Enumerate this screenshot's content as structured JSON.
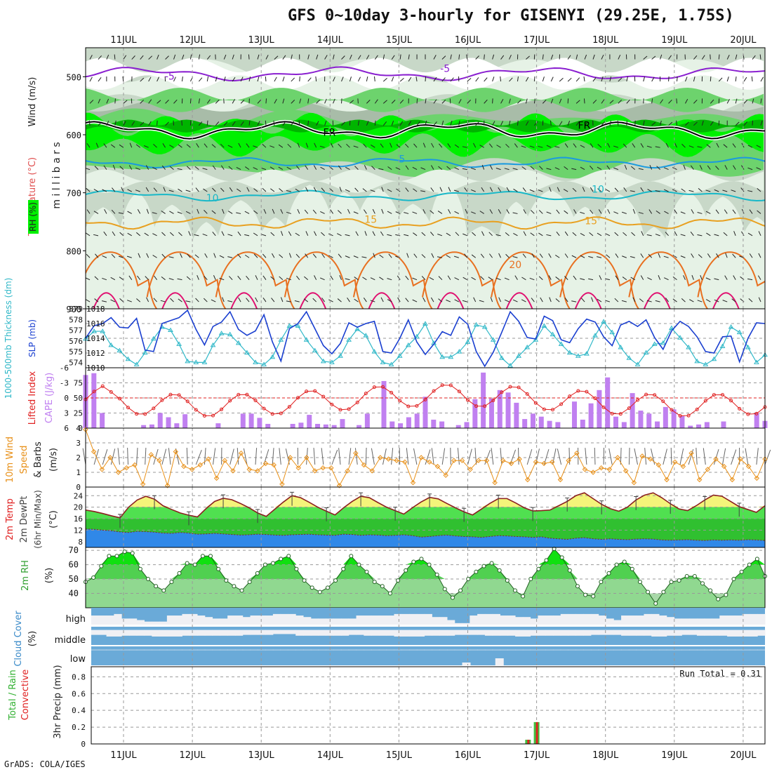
{
  "title": "GFS 0~10day 3-hourly for GISENYI (29.25E, 1.75S)",
  "footer": "GrADS: COLA/IGES",
  "dates": [
    "11JUL",
    "12JUL",
    "13JUL",
    "14JUL",
    "15JUL",
    "16JUL",
    "17JUL",
    "18JUL",
    "19JUL",
    "20JUL"
  ],
  "colors": {
    "rh_light": "#e6f2e6",
    "rh_mid": "#c8d8c8",
    "rh_dark": "#a8bca8",
    "rh_green": "#6dd36d",
    "rh_bright": "#00f000",
    "rh_deep": "#00b400",
    "temp_m5": "#8a1fd0",
    "temp_fr": "#000000",
    "temp_5": "#1a9adf",
    "temp_10": "#18b8c8",
    "temp_15": "#e8a020",
    "temp_20": "#e87020",
    "temp_25": "#e01070",
    "slp": "#1a3fd0",
    "thick": "#30b8c8",
    "cape": "#c080f0",
    "li": "#e02020",
    "wind10": "#e89018",
    "t_yellow": "#f4f47a",
    "t_green1": "#50e050",
    "t_green2": "#30c030",
    "dew_blue": "#3088e8",
    "cloud_blue": "#6aaad8",
    "cloud_white": "#f0f0f4",
    "precip_green": "#40c040",
    "precip_red": "#e02020"
  },
  "chart_data": [
    {
      "type": "heatmap",
      "panel": "upper-air",
      "ylabel": "m i l l i b a r s",
      "side_labels": [
        "RH (%)",
        "Temperature (°C)",
        "Wind (m/s)"
      ],
      "y_ticks": [
        500,
        600,
        700,
        800,
        900
      ],
      "ylim": [
        450,
        900
      ],
      "isotherm_labels": [
        {
          "text": "-5",
          "date": 11.6,
          "level": 505,
          "key": "temp_m5"
        },
        {
          "text": "-5",
          "date": 15.6,
          "level": 492,
          "key": "temp_m5"
        },
        {
          "text": "FR",
          "date": 13.9,
          "level": 602,
          "key": "temp_fr"
        },
        {
          "text": "FR",
          "date": 17.6,
          "level": 590,
          "key": "temp_fr"
        },
        {
          "text": "5",
          "date": 15.0,
          "level": 648,
          "key": "temp_5"
        },
        {
          "text": "10",
          "date": 12.2,
          "level": 715,
          "key": "temp_10"
        },
        {
          "text": "10",
          "date": 17.8,
          "level": 700,
          "key": "temp_10"
        },
        {
          "text": "15",
          "date": 14.5,
          "level": 752,
          "key": "temp_15"
        },
        {
          "text": "15",
          "date": 17.7,
          "level": 754,
          "key": "temp_15"
        },
        {
          "text": "20",
          "date": 16.6,
          "level": 830,
          "key": "temp_20"
        }
      ]
    },
    {
      "type": "line",
      "panel": "thickness-slp",
      "ylabel_left": "1000-500mb Thickness (dm)",
      "ylabel_right": "SLP (mb)",
      "left_ticks": [
        574,
        575,
        576,
        577,
        578,
        579
      ],
      "right_ticks": [
        1010,
        1012,
        1014,
        1016,
        1018
      ],
      "series": [
        {
          "key": "slp",
          "values": [
            1014.0,
            1015.7,
            1016.0,
            1016.8,
            1015.5,
            1015.4,
            1016.7,
            1012.4,
            1012.2,
            1016.0,
            1016.4,
            1016.8,
            1017.8,
            1015.2,
            1013.1,
            1015.6,
            1016.2,
            1017.6,
            1015.2,
            1014.4,
            1015.0,
            1017.2,
            1013.5,
            1010.9,
            1015.3,
            1016.0,
            1017.6,
            1015.3,
            1013.0,
            1011.9,
            1013.3,
            1016.1,
            1015.5,
            1016.0,
            1016.3,
            1012.2,
            1012.0,
            1014.0,
            1016.5,
            1013.5,
            1011.8,
            1013.2,
            1014.9,
            1014.4,
            1016.9,
            1015.9,
            1012.2,
            1010.2,
            1012.1,
            1014.8,
            1017.6,
            1016.3,
            1014.1,
            1013.9,
            1017.0,
            1016.4,
            1013.8,
            1013.4,
            1015.3,
            1016.6,
            1016.2,
            1014.2,
            1013.0,
            1015.8,
            1016.3,
            1015.6,
            1016.5,
            1014.1,
            1012.5,
            1015.0,
            1016.3,
            1015.6,
            1014.2,
            1012.2,
            1012.0,
            1014.2,
            1014.3,
            1010.8,
            1014.0,
            1016.1,
            1016.0
          ]
        },
        {
          "key": "thick",
          "values": [
            576.2,
            576.9,
            576.9,
            575.6,
            575.1,
            574.3,
            573.8,
            574.9,
            576.2,
            577.3,
            577.0,
            575.7,
            574.1,
            574.0,
            574.0,
            575.6,
            576.7,
            576.6,
            575.8,
            574.9,
            574.0,
            573.8,
            574.5,
            576.1,
            577.4,
            577.4,
            576.1,
            575.1,
            574.1,
            574.0,
            574.6,
            576.1,
            577.1,
            576.5,
            575.0,
            574.0,
            573.8,
            574.6,
            575.6,
            576.4,
            577.6,
            575.8,
            574.5,
            574.5,
            575.0,
            575.9,
            577.5,
            577.3,
            576.1,
            574.4,
            573.7,
            574.6,
            575.4,
            576.1,
            577.4,
            576.6,
            575.7,
            574.9,
            574.6,
            574.8,
            576.5,
            577.8,
            576.8,
            575.4,
            574.4,
            573.8,
            574.9,
            575.7,
            575.8,
            577.2,
            576.3,
            575.4,
            574.1,
            573.8,
            574.3,
            575.5,
            577.3,
            576.8,
            575.4,
            574.0,
            574.7
          ]
        }
      ]
    },
    {
      "type": "bar",
      "panel": "cape-li",
      "ylabel_left": "Lifted Index",
      "ylabel_right": "CAPE (J/kg)",
      "li_ticks": [
        -6,
        -3,
        0,
        3,
        6
      ],
      "cape_ticks": [
        0,
        25,
        50,
        75
      ],
      "cape_values": [
        88,
        91,
        25,
        0,
        0,
        0,
        0,
        5,
        6,
        25,
        18,
        8,
        23,
        0,
        0,
        0,
        8,
        0,
        0,
        24,
        24,
        17,
        7,
        0,
        0,
        7,
        9,
        22,
        7,
        6,
        5,
        15,
        0,
        5,
        24,
        0,
        78,
        11,
        8,
        18,
        24,
        52,
        14,
        11,
        0,
        5,
        10,
        48,
        92,
        49,
        63,
        59,
        42,
        15,
        24,
        19,
        12,
        10,
        0,
        44,
        14,
        41,
        63,
        84,
        19,
        10,
        58,
        29,
        24,
        11,
        35,
        31,
        20,
        4,
        6,
        10,
        0,
        11,
        0,
        0,
        0,
        25,
        12
      ]
    },
    {
      "type": "line",
      "panel": "wind10m",
      "ylabel": "10m Wind Speed & Barbs (m/s)",
      "y_ticks": [
        0,
        1,
        2,
        3,
        4
      ],
      "ylim": [
        0,
        4
      ],
      "series": [
        {
          "key": "wind10",
          "values": [
            3.9,
            2.4,
            1.2,
            2.0,
            1.0,
            1.3,
            1.5,
            0.2,
            2.2,
            1.8,
            0.1,
            2.4,
            1.4,
            1.2,
            1.5,
            1.9,
            0.6,
            1.8,
            1.1,
            2.3,
            1.2,
            1.1,
            1.6,
            1.5,
            0.2,
            2.0,
            1.3,
            2.0,
            1.1,
            1.3,
            1.3,
            0.1,
            1.1,
            2.3,
            1.5,
            1.1,
            2.0,
            1.9,
            1.8,
            1.7,
            0.3,
            2.0,
            1.7,
            1.4,
            0.8,
            1.8,
            1.8,
            1.2,
            1.8,
            1.8,
            0.3,
            1.8,
            1.6,
            1.9,
            0.5,
            1.7,
            1.6,
            1.7,
            0.5,
            1.8,
            2.3,
            1.2,
            1.0,
            1.3,
            1.2,
            2.0,
            1.1,
            0.3,
            2.1,
            1.9,
            1.5,
            0.5,
            1.7,
            1.4,
            2.3,
            0.5,
            1.2,
            1.9,
            1.4,
            0.5,
            1.9,
            1.4,
            0.6,
            1.9
          ]
        }
      ]
    },
    {
      "type": "area",
      "panel": "temp-dewpt",
      "ylabel": "2m Temp 2m DewPt (6hr Min/Max) (°C)",
      "y_ticks": [
        8,
        12,
        16,
        20,
        24
      ],
      "ylim": [
        6,
        27
      ],
      "series": [
        {
          "name": "temp",
          "values": [
            19.0,
            18.5,
            17.8,
            17.0,
            16.3,
            20.0,
            22.5,
            23.8,
            22.8,
            20.5,
            19.2,
            18.0,
            17.2,
            16.6,
            19.5,
            22.0,
            23.1,
            22.6,
            21.3,
            19.8,
            18.0,
            16.8,
            19.3,
            21.8,
            24.0,
            23.3,
            21.7,
            20.0,
            18.6,
            17.3,
            19.8,
            22.0,
            23.8,
            23.3,
            21.6,
            20.0,
            18.8,
            17.6,
            19.8,
            21.8,
            23.4,
            22.9,
            21.3,
            19.8,
            18.4,
            17.3,
            19.3,
            21.3,
            23.0,
            23.0,
            21.5,
            19.8,
            18.7,
            18.8,
            19.0,
            20.5,
            22.0,
            24.0,
            25.0,
            23.0,
            21.0,
            19.5,
            18.6,
            20.0,
            22.5,
            24.2,
            25.0,
            23.3,
            21.2,
            19.4,
            18.8,
            20.5,
            22.5,
            24.2,
            23.8,
            22.0,
            20.2,
            19.2,
            18.2,
            20.5
          ]
        },
        {
          "name": "dewpt",
          "values": [
            12.4,
            12.3,
            12.0,
            11.8,
            11.4,
            11.2,
            11.6,
            11.5,
            11.3,
            11.0,
            10.9,
            11.2,
            11.0,
            10.6,
            10.7,
            10.9,
            10.7,
            10.5,
            10.3,
            10.4,
            10.6,
            10.5,
            10.3,
            10.2,
            10.4,
            10.5,
            10.6,
            10.4,
            10.3,
            10.2,
            10.6,
            10.5,
            10.2,
            10.4,
            10.3,
            10.1,
            10.2,
            10.4,
            10.1,
            9.6,
            9.8,
            10.1,
            10.3,
            10.0,
            9.8,
            9.7,
            9.5,
            9.8,
            10.1,
            10.0,
            9.8,
            9.7,
            9.5,
            9.7,
            9.2,
            9.0,
            8.8,
            9.2,
            9.4,
            9.0,
            8.8,
            9.0,
            8.8,
            8.7,
            8.9,
            9.0,
            8.9,
            8.6,
            8.5,
            8.6,
            8.7,
            8.5,
            8.4,
            8.6,
            8.5,
            8.6,
            8.5,
            8.7,
            8.6,
            8.4
          ]
        }
      ]
    },
    {
      "type": "area",
      "panel": "rh2m",
      "ylabel": "2m RH (%)",
      "y_ticks": [
        40,
        50,
        60,
        70
      ],
      "ylim": [
        30,
        72
      ],
      "series": [
        {
          "name": "rh",
          "values": [
            48,
            51,
            59,
            66,
            66,
            69,
            68,
            57,
            50,
            45,
            42,
            48,
            54,
            61,
            60,
            66,
            66,
            57,
            49,
            45,
            42,
            48,
            54,
            60,
            61,
            64,
            66,
            57,
            49,
            44,
            41,
            44,
            49,
            57,
            66,
            60,
            55,
            48,
            45,
            40,
            49,
            56,
            62,
            64,
            60,
            53,
            43,
            37,
            42,
            50,
            55,
            59,
            61,
            56,
            49,
            42,
            38,
            50,
            57,
            63,
            71,
            65,
            56,
            45,
            39,
            38,
            48,
            54,
            60,
            62,
            57,
            48,
            41,
            33,
            41,
            48,
            49,
            52,
            52,
            47,
            42,
            36,
            39,
            50,
            55,
            60,
            64,
            52
          ]
        }
      ]
    },
    {
      "type": "heatmap",
      "panel": "cloud",
      "ylabel": "Cloud Cover (%)",
      "row_labels": [
        "high",
        "middle",
        "low"
      ],
      "high": [
        40,
        40,
        40,
        30,
        60,
        60,
        70,
        80,
        80,
        80,
        40,
        40,
        30,
        30,
        40,
        50,
        60,
        60,
        40,
        40,
        50,
        40,
        40,
        40,
        30,
        30,
        30,
        40,
        50,
        60,
        60,
        60,
        60,
        60,
        60,
        40,
        40,
        40,
        40,
        40,
        30,
        30,
        30,
        30,
        30,
        50,
        50,
        70,
        90,
        90,
        40,
        30,
        30,
        30,
        40,
        40,
        50,
        50,
        60,
        40,
        40,
        40,
        30,
        30,
        30,
        30,
        30,
        40,
        60,
        70,
        40,
        40,
        40,
        30,
        30,
        40,
        50,
        60,
        60,
        60,
        60,
        60,
        60,
        40,
        40,
        40,
        30,
        30,
        30
      ],
      "middle": [
        40,
        40,
        20,
        20,
        30,
        30,
        30,
        30,
        20,
        20,
        20,
        20,
        30,
        30,
        30,
        30,
        30,
        30,
        30,
        30,
        40,
        40,
        40,
        40,
        50,
        50,
        50,
        30,
        30,
        30,
        30,
        30,
        30,
        30,
        40,
        40,
        30,
        30,
        30,
        30,
        20,
        20,
        20,
        20,
        30,
        30,
        30,
        30,
        40,
        40,
        40,
        40,
        30,
        30,
        30,
        30,
        20,
        20,
        30,
        30,
        30,
        30,
        30,
        30,
        30,
        30,
        40,
        40,
        40,
        40,
        30,
        30,
        30,
        30,
        20,
        20,
        30,
        30,
        40,
        40,
        30,
        30,
        30,
        30,
        20,
        20,
        20,
        20,
        30
      ],
      "low": [
        0,
        0,
        0,
        0,
        0,
        0,
        0,
        0,
        0,
        0,
        0,
        0,
        0,
        0,
        0,
        0,
        0,
        0,
        0,
        0,
        0,
        0,
        0,
        0,
        0,
        0,
        0,
        0,
        0,
        0,
        0,
        0,
        0,
        0,
        0,
        0,
        0,
        0,
        0,
        0,
        0,
        0,
        0,
        0,
        0,
        0,
        0,
        0,
        0,
        0,
        0,
        0,
        0,
        0,
        0,
        0,
        0,
        0,
        0,
        0,
        0,
        0,
        0,
        0,
        0,
        0,
        0,
        0,
        0,
        0,
        0,
        0,
        0,
        0,
        0,
        0,
        0,
        0,
        0,
        0,
        0,
        0,
        0,
        0,
        0,
        0,
        0,
        0,
        0
      ]
    },
    {
      "type": "bar",
      "panel": "precip",
      "ylabel": "3hr Precip (mm)",
      "side_labels": [
        "Total / Rain",
        "Convective"
      ],
      "y_ticks": [
        0,
        0.2,
        0.4,
        0.6,
        0.8
      ],
      "ylim": [
        0,
        0.92
      ],
      "run_total": "Run Total = 0.31",
      "bars": [
        {
          "date": 16.875,
          "total": 0.05,
          "convective": 0.05
        },
        {
          "date": 17.0,
          "total": 0.26,
          "convective": 0.26
        }
      ]
    }
  ]
}
